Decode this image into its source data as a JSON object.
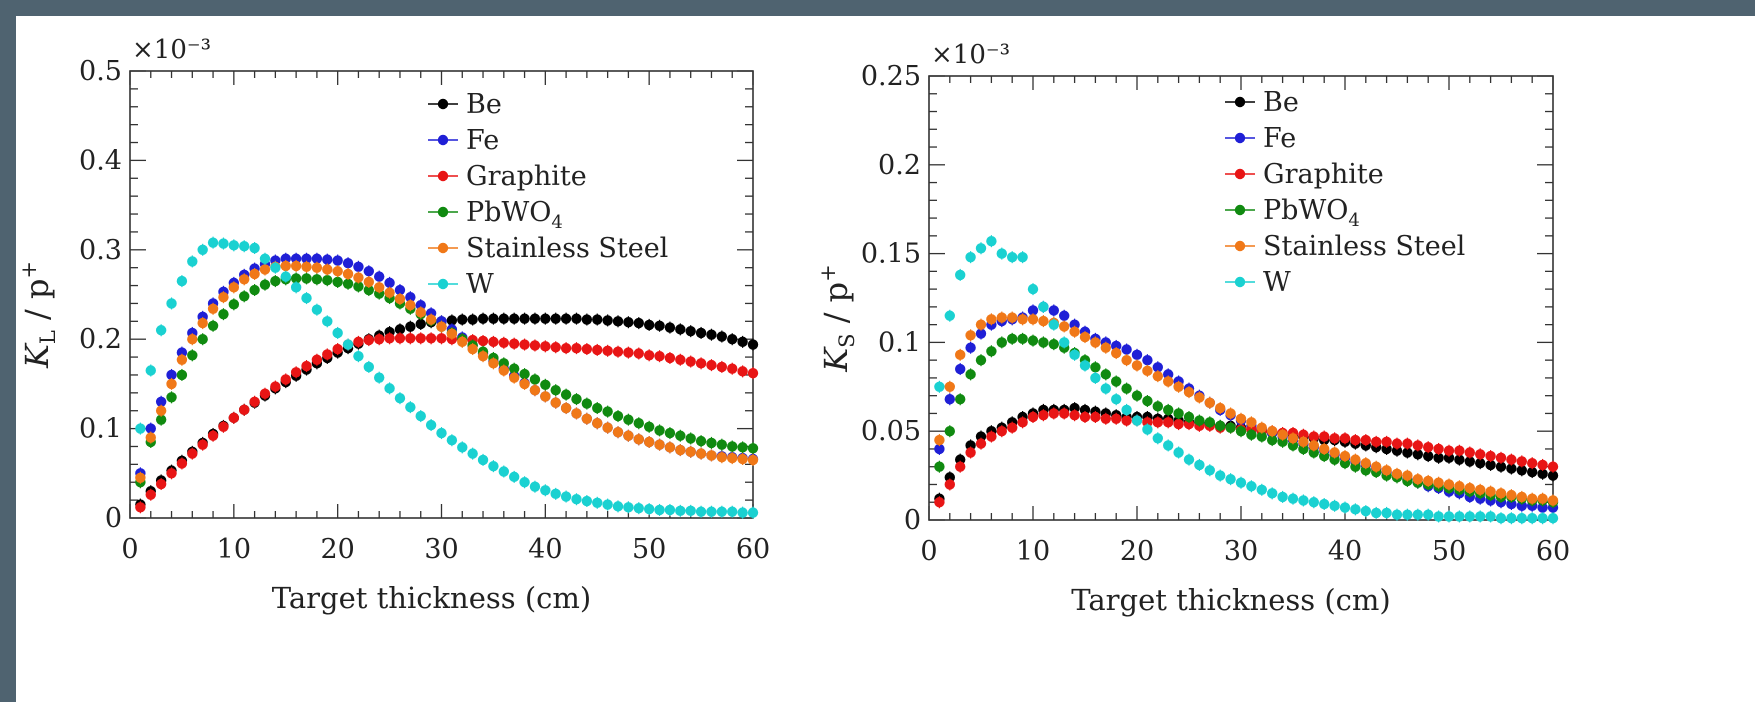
{
  "chart_data": [
    {
      "type": "scatter",
      "exponent_label": "×10⁻³",
      "ylabel": "K_L / p+",
      "ylabel_main": "K",
      "ylabel_sub": "L",
      "ylabel_rest": " / p",
      "ylabel_sup": "+",
      "xlabel": "Target thickness (cm)",
      "xlim": [
        0,
        60
      ],
      "ylim": [
        0,
        0.5
      ],
      "xticks": [
        0,
        10,
        20,
        30,
        40,
        50,
        60
      ],
      "xtick_labels": [
        "0",
        "10",
        "20",
        "30",
        "40",
        "50",
        "60"
      ],
      "yticks": [
        0,
        0.1,
        0.2,
        0.3,
        0.4,
        0.5
      ],
      "ytick_labels": [
        "0",
        "0.1",
        "0.2",
        "0.3",
        "0.4",
        "0.5"
      ],
      "legend_position": "top-right",
      "x": [
        1,
        2,
        3,
        4,
        5,
        6,
        7,
        8,
        9,
        10,
        11,
        12,
        13,
        14,
        15,
        16,
        17,
        18,
        19,
        20,
        21,
        22,
        23,
        24,
        25,
        26,
        27,
        28,
        29,
        30,
        31,
        32,
        33,
        34,
        35,
        36,
        37,
        38,
        39,
        40,
        41,
        42,
        43,
        44,
        45,
        46,
        47,
        48,
        49,
        50,
        51,
        52,
        53,
        54,
        55,
        56,
        57,
        58,
        59,
        60
      ],
      "series": [
        {
          "name": "Be",
          "color": "#000000",
          "values": [
            0.015,
            0.03,
            0.042,
            0.053,
            0.064,
            0.074,
            0.084,
            0.094,
            0.103,
            0.112,
            0.121,
            0.129,
            0.137,
            0.145,
            0.152,
            0.159,
            0.166,
            0.173,
            0.179,
            0.185,
            0.19,
            0.195,
            0.2,
            0.204,
            0.208,
            0.211,
            0.214,
            0.217,
            0.219,
            0.22,
            0.221,
            0.222,
            0.222,
            0.223,
            0.223,
            0.223,
            0.223,
            0.223,
            0.223,
            0.223,
            0.223,
            0.223,
            0.223,
            0.222,
            0.222,
            0.221,
            0.22,
            0.219,
            0.218,
            0.216,
            0.215,
            0.213,
            0.211,
            0.209,
            0.207,
            0.205,
            0.203,
            0.2,
            0.197,
            0.194
          ]
        },
        {
          "name": "Fe",
          "color": "#1f1fd6",
          "values": [
            0.05,
            0.1,
            0.13,
            0.16,
            0.185,
            0.207,
            0.225,
            0.24,
            0.253,
            0.263,
            0.272,
            0.279,
            0.284,
            0.288,
            0.29,
            0.29,
            0.29,
            0.29,
            0.289,
            0.288,
            0.285,
            0.281,
            0.276,
            0.27,
            0.263,
            0.255,
            0.247,
            0.238,
            0.229,
            0.22,
            0.211,
            0.202,
            0.193,
            0.184,
            0.175,
            0.167,
            0.159,
            0.151,
            0.143,
            0.136,
            0.129,
            0.123,
            0.117,
            0.111,
            0.106,
            0.101,
            0.096,
            0.092,
            0.088,
            0.085,
            0.082,
            0.079,
            0.076,
            0.074,
            0.072,
            0.07,
            0.069,
            0.068,
            0.067,
            0.066
          ]
        },
        {
          "name": "Graphite",
          "color": "#e81515",
          "values": [
            0.012,
            0.026,
            0.038,
            0.05,
            0.061,
            0.072,
            0.082,
            0.092,
            0.102,
            0.112,
            0.121,
            0.13,
            0.139,
            0.147,
            0.155,
            0.163,
            0.17,
            0.177,
            0.183,
            0.189,
            0.194,
            0.197,
            0.199,
            0.2,
            0.201,
            0.201,
            0.201,
            0.201,
            0.201,
            0.201,
            0.2,
            0.2,
            0.199,
            0.198,
            0.197,
            0.196,
            0.195,
            0.194,
            0.193,
            0.192,
            0.191,
            0.19,
            0.19,
            0.189,
            0.188,
            0.187,
            0.186,
            0.185,
            0.184,
            0.182,
            0.181,
            0.179,
            0.177,
            0.175,
            0.173,
            0.171,
            0.169,
            0.167,
            0.164,
            0.162
          ]
        },
        {
          "name": "PbWO4",
          "label_main": "PbWO",
          "label_sub": "4",
          "color": "#108a10",
          "values": [
            0.04,
            0.085,
            0.11,
            0.135,
            0.16,
            0.182,
            0.2,
            0.215,
            0.228,
            0.239,
            0.248,
            0.255,
            0.261,
            0.265,
            0.267,
            0.268,
            0.268,
            0.267,
            0.266,
            0.264,
            0.262,
            0.259,
            0.255,
            0.251,
            0.246,
            0.24,
            0.234,
            0.228,
            0.221,
            0.214,
            0.207,
            0.2,
            0.193,
            0.186,
            0.179,
            0.173,
            0.167,
            0.161,
            0.155,
            0.149,
            0.143,
            0.138,
            0.133,
            0.128,
            0.123,
            0.119,
            0.114,
            0.11,
            0.106,
            0.102,
            0.098,
            0.095,
            0.092,
            0.089,
            0.086,
            0.084,
            0.082,
            0.08,
            0.079,
            0.078
          ]
        },
        {
          "name": "Stainless Steel",
          "color": "#f07818",
          "values": [
            0.045,
            0.09,
            0.12,
            0.15,
            0.177,
            0.2,
            0.218,
            0.234,
            0.247,
            0.258,
            0.267,
            0.273,
            0.278,
            0.281,
            0.282,
            0.282,
            0.281,
            0.28,
            0.278,
            0.276,
            0.273,
            0.269,
            0.264,
            0.258,
            0.252,
            0.245,
            0.238,
            0.23,
            0.222,
            0.214,
            0.206,
            0.197,
            0.189,
            0.181,
            0.173,
            0.165,
            0.157,
            0.15,
            0.143,
            0.136,
            0.129,
            0.123,
            0.117,
            0.111,
            0.106,
            0.101,
            0.096,
            0.092,
            0.088,
            0.085,
            0.082,
            0.079,
            0.076,
            0.074,
            0.072,
            0.07,
            0.068,
            0.067,
            0.066,
            0.065
          ]
        },
        {
          "name": "W",
          "color": "#1ad1d1",
          "values": [
            0.1,
            0.165,
            0.21,
            0.24,
            0.265,
            0.287,
            0.3,
            0.308,
            0.307,
            0.305,
            0.304,
            0.302,
            0.29,
            0.28,
            0.27,
            0.258,
            0.246,
            0.233,
            0.22,
            0.207,
            0.194,
            0.181,
            0.169,
            0.157,
            0.145,
            0.134,
            0.124,
            0.114,
            0.104,
            0.095,
            0.087,
            0.079,
            0.072,
            0.065,
            0.058,
            0.052,
            0.046,
            0.04,
            0.035,
            0.031,
            0.027,
            0.024,
            0.021,
            0.019,
            0.017,
            0.015,
            0.013,
            0.012,
            0.011,
            0.01,
            0.009,
            0.009,
            0.008,
            0.008,
            0.007,
            0.007,
            0.007,
            0.007,
            0.006,
            0.006
          ]
        }
      ]
    },
    {
      "type": "scatter",
      "exponent_label": "×10⁻³",
      "ylabel": "K_S / p+",
      "ylabel_main": "K",
      "ylabel_sub": "S",
      "ylabel_rest": " / p",
      "ylabel_sup": "+",
      "xlabel": "Target thickness (cm)",
      "xlim": [
        0,
        60
      ],
      "ylim": [
        0,
        0.25
      ],
      "xticks": [
        0,
        10,
        20,
        30,
        40,
        50,
        60
      ],
      "xtick_labels": [
        "0",
        "10",
        "20",
        "30",
        "40",
        "50",
        "60"
      ],
      "yticks": [
        0,
        0.05,
        0.1,
        0.15,
        0.2,
        0.25
      ],
      "ytick_labels": [
        "0",
        "0.05",
        "0.1",
        "0.15",
        "0.2",
        "0.25"
      ],
      "legend_position": "top-right",
      "x": [
        1,
        2,
        3,
        4,
        5,
        6,
        7,
        8,
        9,
        10,
        11,
        12,
        13,
        14,
        15,
        16,
        17,
        18,
        19,
        20,
        21,
        22,
        23,
        24,
        25,
        26,
        27,
        28,
        29,
        30,
        31,
        32,
        33,
        34,
        35,
        36,
        37,
        38,
        39,
        40,
        41,
        42,
        43,
        44,
        45,
        46,
        47,
        48,
        49,
        50,
        51,
        52,
        53,
        54,
        55,
        56,
        57,
        58,
        59,
        60
      ],
      "series": [
        {
          "name": "Be",
          "color": "#000000",
          "values": [
            0.012,
            0.024,
            0.034,
            0.042,
            0.047,
            0.05,
            0.052,
            0.055,
            0.058,
            0.06,
            0.062,
            0.062,
            0.062,
            0.063,
            0.062,
            0.061,
            0.06,
            0.059,
            0.058,
            0.058,
            0.058,
            0.057,
            0.057,
            0.056,
            0.055,
            0.055,
            0.054,
            0.053,
            0.053,
            0.052,
            0.051,
            0.05,
            0.049,
            0.048,
            0.047,
            0.047,
            0.046,
            0.045,
            0.045,
            0.044,
            0.043,
            0.042,
            0.041,
            0.04,
            0.039,
            0.038,
            0.037,
            0.036,
            0.035,
            0.035,
            0.034,
            0.033,
            0.032,
            0.031,
            0.03,
            0.029,
            0.028,
            0.027,
            0.026,
            0.025
          ]
        },
        {
          "name": "Fe",
          "color": "#1f1fd6",
          "values": [
            0.04,
            0.068,
            0.085,
            0.097,
            0.105,
            0.11,
            0.112,
            0.113,
            0.114,
            0.118,
            0.12,
            0.118,
            0.115,
            0.11,
            0.106,
            0.102,
            0.1,
            0.098,
            0.096,
            0.093,
            0.09,
            0.086,
            0.082,
            0.078,
            0.074,
            0.07,
            0.066,
            0.062,
            0.059,
            0.056,
            0.053,
            0.051,
            0.049,
            0.047,
            0.045,
            0.043,
            0.041,
            0.039,
            0.037,
            0.035,
            0.033,
            0.031,
            0.029,
            0.027,
            0.025,
            0.023,
            0.021,
            0.019,
            0.018,
            0.016,
            0.015,
            0.013,
            0.012,
            0.011,
            0.01,
            0.009,
            0.008,
            0.008,
            0.007,
            0.007
          ]
        },
        {
          "name": "Graphite",
          "color": "#e81515",
          "values": [
            0.01,
            0.02,
            0.03,
            0.038,
            0.043,
            0.047,
            0.05,
            0.052,
            0.055,
            0.058,
            0.059,
            0.06,
            0.06,
            0.059,
            0.058,
            0.058,
            0.057,
            0.057,
            0.056,
            0.056,
            0.055,
            0.055,
            0.055,
            0.054,
            0.054,
            0.053,
            0.053,
            0.052,
            0.052,
            0.051,
            0.051,
            0.05,
            0.05,
            0.049,
            0.049,
            0.048,
            0.047,
            0.047,
            0.046,
            0.046,
            0.045,
            0.045,
            0.044,
            0.044,
            0.043,
            0.043,
            0.042,
            0.041,
            0.04,
            0.039,
            0.039,
            0.038,
            0.037,
            0.036,
            0.035,
            0.034,
            0.033,
            0.032,
            0.031,
            0.03
          ]
        },
        {
          "name": "PbWO4",
          "label_main": "PbWO",
          "label_sub": "4",
          "color": "#108a10",
          "values": [
            0.03,
            0.05,
            0.068,
            0.082,
            0.09,
            0.095,
            0.1,
            0.102,
            0.102,
            0.101,
            0.1,
            0.099,
            0.097,
            0.094,
            0.09,
            0.086,
            0.082,
            0.078,
            0.074,
            0.07,
            0.067,
            0.064,
            0.062,
            0.06,
            0.058,
            0.056,
            0.055,
            0.053,
            0.052,
            0.05,
            0.048,
            0.047,
            0.045,
            0.044,
            0.042,
            0.04,
            0.038,
            0.036,
            0.034,
            0.032,
            0.03,
            0.028,
            0.027,
            0.025,
            0.024,
            0.022,
            0.021,
            0.02,
            0.019,
            0.018,
            0.017,
            0.016,
            0.015,
            0.014,
            0.013,
            0.013,
            0.012,
            0.011,
            0.011,
            0.01
          ]
        },
        {
          "name": "Stainless Steel",
          "color": "#f07818",
          "values": [
            0.045,
            0.075,
            0.093,
            0.104,
            0.11,
            0.113,
            0.114,
            0.114,
            0.113,
            0.113,
            0.112,
            0.111,
            0.109,
            0.106,
            0.103,
            0.1,
            0.097,
            0.094,
            0.09,
            0.087,
            0.084,
            0.081,
            0.078,
            0.075,
            0.072,
            0.069,
            0.066,
            0.063,
            0.06,
            0.057,
            0.055,
            0.052,
            0.05,
            0.048,
            0.046,
            0.044,
            0.042,
            0.04,
            0.038,
            0.036,
            0.034,
            0.032,
            0.03,
            0.028,
            0.026,
            0.025,
            0.023,
            0.022,
            0.021,
            0.02,
            0.019,
            0.018,
            0.017,
            0.016,
            0.015,
            0.014,
            0.013,
            0.012,
            0.012,
            0.011
          ]
        },
        {
          "name": "W",
          "color": "#1ad1d1",
          "values": [
            0.075,
            0.115,
            0.138,
            0.148,
            0.153,
            0.157,
            0.15,
            0.148,
            0.148,
            0.13,
            0.12,
            0.11,
            0.1,
            0.093,
            0.087,
            0.08,
            0.074,
            0.068,
            0.062,
            0.056,
            0.051,
            0.046,
            0.042,
            0.038,
            0.034,
            0.031,
            0.028,
            0.025,
            0.023,
            0.021,
            0.019,
            0.017,
            0.015,
            0.013,
            0.012,
            0.011,
            0.01,
            0.009,
            0.008,
            0.007,
            0.006,
            0.005,
            0.004,
            0.004,
            0.003,
            0.003,
            0.003,
            0.003,
            0.002,
            0.002,
            0.002,
            0.002,
            0.002,
            0.002,
            0.001,
            0.001,
            0.001,
            0.001,
            0.001,
            0.001
          ]
        }
      ]
    }
  ]
}
